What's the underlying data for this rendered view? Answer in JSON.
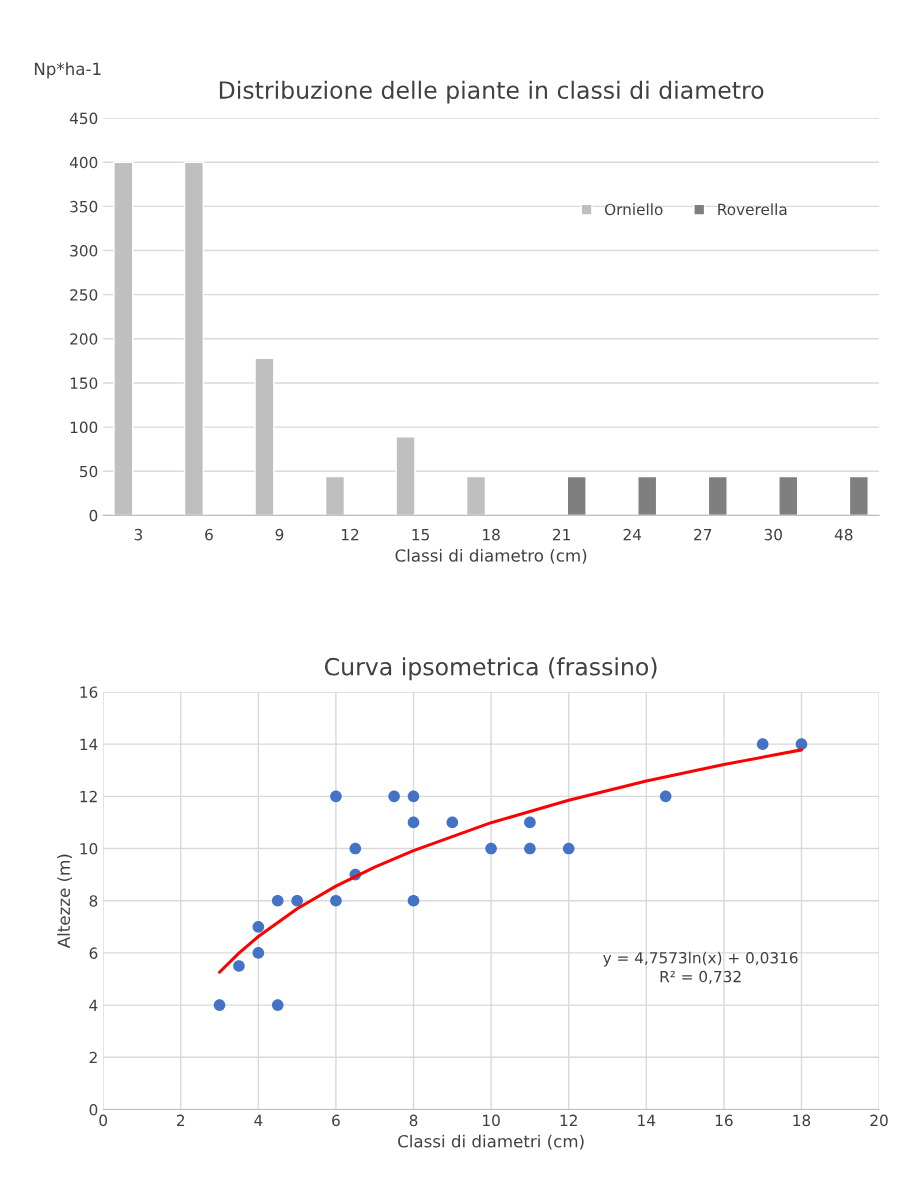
{
  "chart_data": [
    {
      "type": "bar",
      "title": "Distribuzione delle piante in classi di diametro",
      "xlabel": "Classi di diametro (cm)",
      "ylabel": "Np*ha-1",
      "categories": [
        "3",
        "6",
        "9",
        "12",
        "15",
        "18",
        "21",
        "24",
        "27",
        "30",
        "48"
      ],
      "series": [
        {
          "name": "Orniello",
          "color": "#bfbfbf",
          "values": [
            400,
            400,
            178,
            44,
            89,
            44,
            null,
            null,
            null,
            null,
            null
          ]
        },
        {
          "name": "Roverella",
          "color": "#7f7f7f",
          "values": [
            null,
            null,
            null,
            null,
            null,
            null,
            44,
            44,
            44,
            44,
            44
          ]
        }
      ],
      "ylim": [
        0,
        450
      ],
      "yticks": [
        0,
        50,
        100,
        150,
        200,
        250,
        300,
        350,
        400,
        450
      ],
      "grid": "y",
      "legend": "top right"
    },
    {
      "type": "scatter",
      "title": "Curva ipsometrica (frassino)",
      "xlabel": "Classi di diametri (cm)",
      "ylabel": "Altezze (m)",
      "series": [
        {
          "color": "#4472c4",
          "marker": "circle",
          "x": [
            3,
            3.5,
            4,
            4,
            4.5,
            4.5,
            5,
            6,
            6,
            6.5,
            6.5,
            7.5,
            8,
            8,
            8,
            9,
            10,
            11,
            11,
            12,
            14.5,
            17,
            18
          ],
          "values": [
            4,
            5.5,
            7,
            6,
            8,
            4,
            8,
            12,
            8,
            10,
            9,
            12,
            12,
            11,
            8,
            11,
            10,
            11,
            10,
            10,
            12,
            14,
            14
          ]
        },
        {
          "type": "line",
          "color": "#ff0000",
          "line_style": "solid",
          "x": [
            3,
            3.5,
            4,
            5,
            6,
            7,
            8,
            10,
            12,
            14,
            16,
            18
          ],
          "values": [
            5.26,
            5.99,
            6.63,
            7.69,
            8.56,
            9.29,
            9.92,
            10.99,
            11.85,
            12.59,
            13.22,
            13.78
          ]
        }
      ],
      "annotations": [
        "y = 4,7573ln(x) + 0,0316",
        "R² = 0,732"
      ],
      "xlim": [
        0,
        20
      ],
      "xticks": [
        0,
        2,
        4,
        6,
        8,
        10,
        12,
        14,
        16,
        18,
        20
      ],
      "ylim": [
        0,
        16
      ],
      "yticks": [
        0,
        2,
        4,
        6,
        8,
        10,
        12,
        14,
        16
      ],
      "grid": true
    }
  ]
}
